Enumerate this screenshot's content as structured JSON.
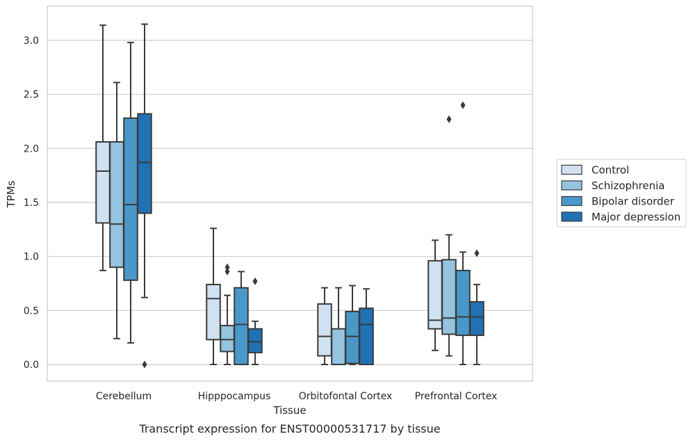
{
  "caption": "Transcript expression for ENST00000531717 by tissue",
  "chart_data": {
    "type": "box",
    "title": "",
    "xlabel": "Tissue",
    "ylabel": "TPMs",
    "ylim": [
      -0.15,
      3.3
    ],
    "yticks": [
      0.0,
      0.5,
      1.0,
      1.5,
      2.0,
      2.5,
      3.0
    ],
    "ytick_labels": [
      "0.0",
      "0.5",
      "1.0",
      "1.5",
      "2.0",
      "2.5",
      "3.0"
    ],
    "grid": "horizontal",
    "legend_position": "right",
    "categories": [
      "Cerebellum",
      "Hipppocampus",
      "Orbitofontal Cortex",
      "Prefrontal Cortex"
    ],
    "series": [
      {
        "name": "Control",
        "color": "#d0e1f2",
        "boxes": [
          {
            "whislo": 0.87,
            "q1": 1.31,
            "med": 1.79,
            "q3": 2.06,
            "whishi": 3.14,
            "fliers": []
          },
          {
            "whislo": 0.0,
            "q1": 0.23,
            "med": 0.61,
            "q3": 0.74,
            "whishi": 1.26,
            "fliers": []
          },
          {
            "whislo": 0.0,
            "q1": 0.08,
            "med": 0.26,
            "q3": 0.56,
            "whishi": 0.71,
            "fliers": []
          },
          {
            "whislo": 0.13,
            "q1": 0.33,
            "med": 0.41,
            "q3": 0.96,
            "whishi": 1.15,
            "fliers": []
          }
        ]
      },
      {
        "name": "Schizophrenia",
        "color": "#94c4df",
        "boxes": [
          {
            "whislo": 0.24,
            "q1": 0.9,
            "med": 1.3,
            "q3": 2.06,
            "whishi": 2.61,
            "fliers": []
          },
          {
            "whislo": 0.0,
            "q1": 0.12,
            "med": 0.23,
            "q3": 0.36,
            "whishi": 0.64,
            "fliers": [
              0.86,
              0.9
            ]
          },
          {
            "whislo": 0.0,
            "q1": 0.0,
            "med": 0.0,
            "q3": 0.33,
            "whishi": 0.71,
            "fliers": []
          },
          {
            "whislo": 0.08,
            "q1": 0.28,
            "med": 0.43,
            "q3": 0.97,
            "whishi": 1.2,
            "fliers": [
              2.27
            ]
          }
        ]
      },
      {
        "name": "Bipolar disorder",
        "color": "#4a98c9",
        "boxes": [
          {
            "whislo": 0.2,
            "q1": 0.78,
            "med": 1.48,
            "q3": 2.28,
            "whishi": 2.98,
            "fliers": []
          },
          {
            "whislo": 0.0,
            "q1": 0.0,
            "med": 0.37,
            "q3": 0.71,
            "whishi": 0.86,
            "fliers": []
          },
          {
            "whislo": 0.0,
            "q1": 0.01,
            "med": 0.26,
            "q3": 0.49,
            "whishi": 0.73,
            "fliers": []
          },
          {
            "whislo": 0.0,
            "q1": 0.27,
            "med": 0.44,
            "q3": 0.87,
            "whishi": 1.04,
            "fliers": [
              2.4
            ]
          }
        ]
      },
      {
        "name": "Major depression",
        "color": "#2171b5",
        "boxes": [
          {
            "whislo": 0.62,
            "q1": 1.4,
            "med": 1.87,
            "q3": 2.32,
            "whishi": 3.15,
            "fliers": [
              0.0
            ]
          },
          {
            "whislo": 0.0,
            "q1": 0.11,
            "med": 0.21,
            "q3": 0.33,
            "whishi": 0.4,
            "fliers": [
              0.77
            ]
          },
          {
            "whislo": 0.0,
            "q1": 0.0,
            "med": 0.37,
            "q3": 0.52,
            "whishi": 0.7,
            "fliers": []
          },
          {
            "whislo": 0.0,
            "q1": 0.27,
            "med": 0.44,
            "q3": 0.58,
            "whishi": 0.74,
            "fliers": [
              1.03
            ]
          }
        ]
      }
    ]
  }
}
